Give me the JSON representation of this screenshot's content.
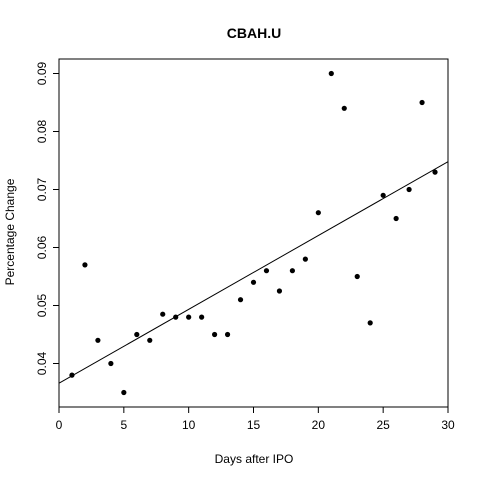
{
  "chart_data": {
    "type": "scatter",
    "title": "CBAH.U",
    "xlabel": "Days after IPO",
    "ylabel": "Percentage Change",
    "xlim": [
      0,
      30
    ],
    "ylim": [
      0.0325,
      0.0925
    ],
    "x_ticks": [
      0,
      5,
      10,
      15,
      20,
      25,
      30
    ],
    "y_ticks": [
      0.04,
      0.05,
      0.06,
      0.07,
      0.08,
      0.09
    ],
    "x_tick_labels": [
      "0",
      "5",
      "10",
      "15",
      "20",
      "25",
      "30"
    ],
    "y_tick_labels": [
      "0.04",
      "0.05",
      "0.06",
      "0.07",
      "0.08",
      "0.09"
    ],
    "grid": false,
    "legend": "none",
    "points": [
      {
        "x": 1,
        "y": 0.038
      },
      {
        "x": 2,
        "y": 0.057
      },
      {
        "x": 3,
        "y": 0.044
      },
      {
        "x": 4,
        "y": 0.04
      },
      {
        "x": 5,
        "y": 0.035
      },
      {
        "x": 6,
        "y": 0.045
      },
      {
        "x": 7,
        "y": 0.044
      },
      {
        "x": 8,
        "y": 0.0485
      },
      {
        "x": 9,
        "y": 0.048
      },
      {
        "x": 10,
        "y": 0.048
      },
      {
        "x": 11,
        "y": 0.048
      },
      {
        "x": 12,
        "y": 0.045
      },
      {
        "x": 13,
        "y": 0.045
      },
      {
        "x": 14,
        "y": 0.051
      },
      {
        "x": 15,
        "y": 0.054
      },
      {
        "x": 16,
        "y": 0.056
      },
      {
        "x": 17,
        "y": 0.0525
      },
      {
        "x": 18,
        "y": 0.056
      },
      {
        "x": 19,
        "y": 0.058
      },
      {
        "x": 20,
        "y": 0.066
      },
      {
        "x": 21,
        "y": 0.09
      },
      {
        "x": 22,
        "y": 0.084
      },
      {
        "x": 23,
        "y": 0.055
      },
      {
        "x": 24,
        "y": 0.047
      },
      {
        "x": 25,
        "y": 0.069
      },
      {
        "x": 26,
        "y": 0.065
      },
      {
        "x": 27,
        "y": 0.07
      },
      {
        "x": 28,
        "y": 0.085
      },
      {
        "x": 29,
        "y": 0.073
      }
    ],
    "trend_line": {
      "x": [
        0,
        30
      ],
      "y": [
        0.0366,
        0.0748
      ]
    },
    "colors": {
      "points": "#000000",
      "line": "#000000",
      "background": "#ffffff"
    }
  }
}
